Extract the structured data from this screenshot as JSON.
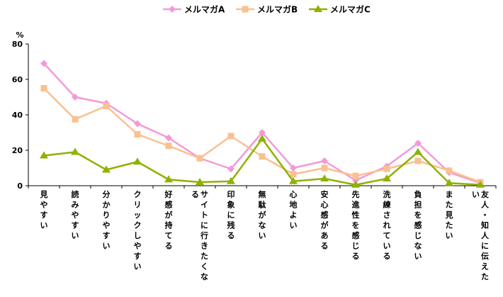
{
  "chart_data": {
    "type": "line",
    "unit_label": "%",
    "ylim": [
      0,
      80
    ],
    "yticks": [
      "0",
      "20",
      "40",
      "60",
      "80"
    ],
    "grid": false,
    "legend_position": "top",
    "categories": [
      "見やすい",
      "読みやすい",
      "分かりやすい",
      "クリックしやすい",
      "好感が持てる",
      "サイトに行きたくなる",
      "印象に残る",
      "無駄がない",
      "心地よい",
      "安心感がある",
      "先進性を感じる",
      "洗練されている",
      "負担を感じない",
      "また見たい",
      "友人・知人に伝えたい"
    ],
    "series": [
      {
        "name": "メルマガA",
        "color": "#f39ad6",
        "marker": "diamond",
        "values": [
          69,
          50,
          46.5,
          35,
          27,
          15.5,
          9.5,
          30,
          10,
          14,
          3,
          11,
          24,
          7.5,
          1.5
        ]
      },
      {
        "name": "メルマガB",
        "color": "#fac090",
        "marker": "square",
        "values": [
          55,
          37.5,
          45,
          29,
          22.5,
          15.5,
          28,
          16.5,
          6.5,
          10,
          5.5,
          9.5,
          14,
          8.5,
          2
        ]
      },
      {
        "name": "メルマガC",
        "color": "#8fb200",
        "marker": "triangle",
        "values": [
          17,
          19,
          9,
          13.5,
          3.5,
          2,
          2.5,
          26.5,
          2.5,
          4,
          0.5,
          4,
          19,
          1.5,
          0.5
        ]
      }
    ]
  }
}
